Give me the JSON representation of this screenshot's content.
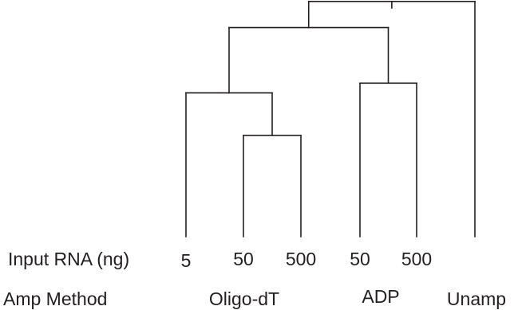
{
  "rows": {
    "input_rna": {
      "label": "Input RNA (ng)",
      "values": [
        "5",
        "50",
        "500",
        "50",
        "500"
      ]
    },
    "amp_method": {
      "label": "Amp Method",
      "groups": [
        "Oligo-dT",
        "ADP",
        "Unamp"
      ]
    }
  },
  "dendrogram": {
    "leaves": 6,
    "line_color": "#231f20",
    "merges": [
      {
        "children": [
          "leaf:1",
          "leaf:2"
        ],
        "height": 0.31
      },
      {
        "children": [
          "leaf:0",
          "merge:0"
        ],
        "height": 0.44
      },
      {
        "children": [
          "leaf:3",
          "leaf:4"
        ],
        "height": 0.47
      },
      {
        "children": [
          "merge:1",
          "merge:2"
        ],
        "height": 0.64
      },
      {
        "children": [
          "merge:3",
          "leaf:5"
        ],
        "height": 0.72
      }
    ]
  }
}
